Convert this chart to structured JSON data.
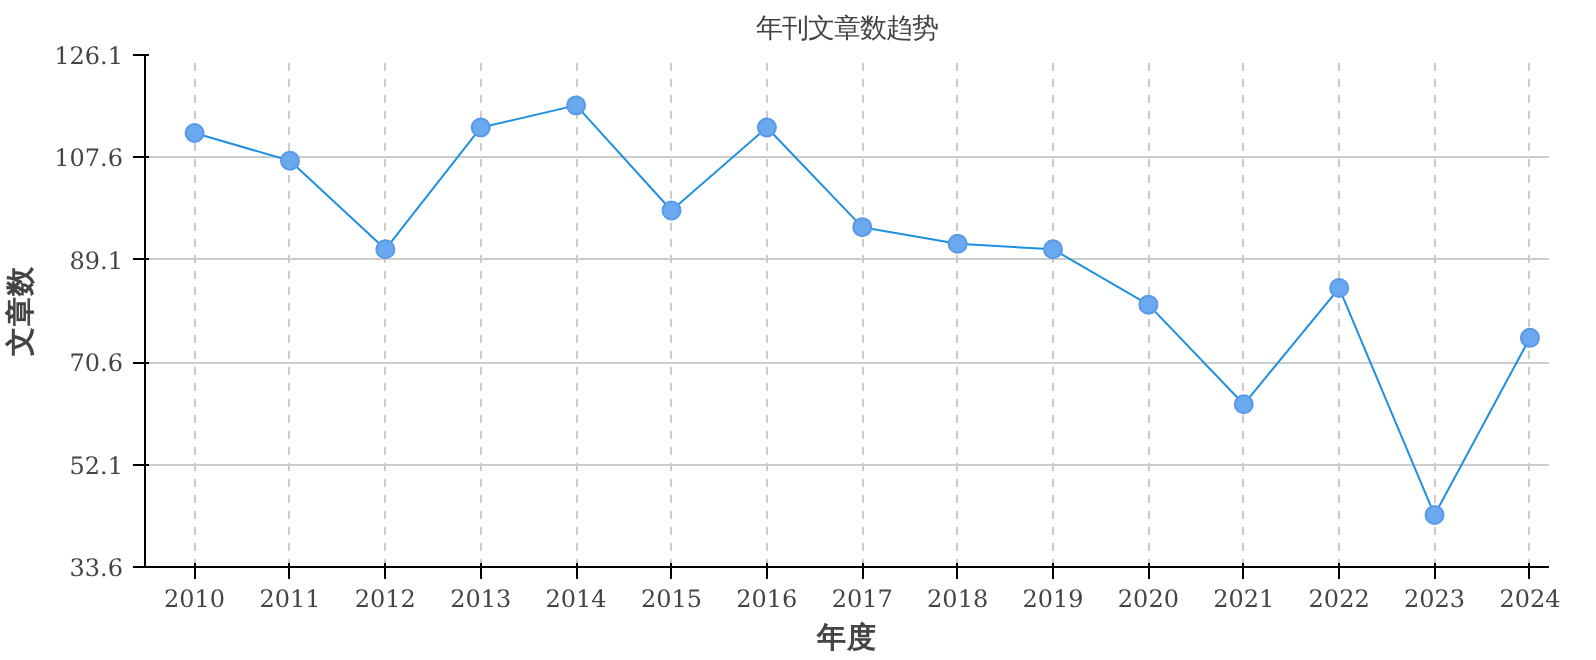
{
  "chart_data": {
    "type": "line",
    "title": "年刊文章数趋势",
    "xlabel": "年度",
    "ylabel": "文章数",
    "categories": [
      "2010",
      "2011",
      "2012",
      "2013",
      "2014",
      "2015",
      "2016",
      "2017",
      "2018",
      "2019",
      "2020",
      "2021",
      "2022",
      "2023",
      "2024"
    ],
    "series": [
      {
        "color": "#1e90e0",
        "values": [
          112,
          107,
          91,
          113,
          117,
          98,
          113,
          95,
          92,
          91,
          81,
          63,
          84,
          43,
          75
        ]
      }
    ],
    "ylim": [
      33.6,
      126.1
    ],
    "yticks": [
      33.6,
      52.1,
      70.6,
      89.1,
      107.6,
      126.1
    ],
    "grid": true,
    "marker": "circle",
    "line_style": "solid"
  }
}
